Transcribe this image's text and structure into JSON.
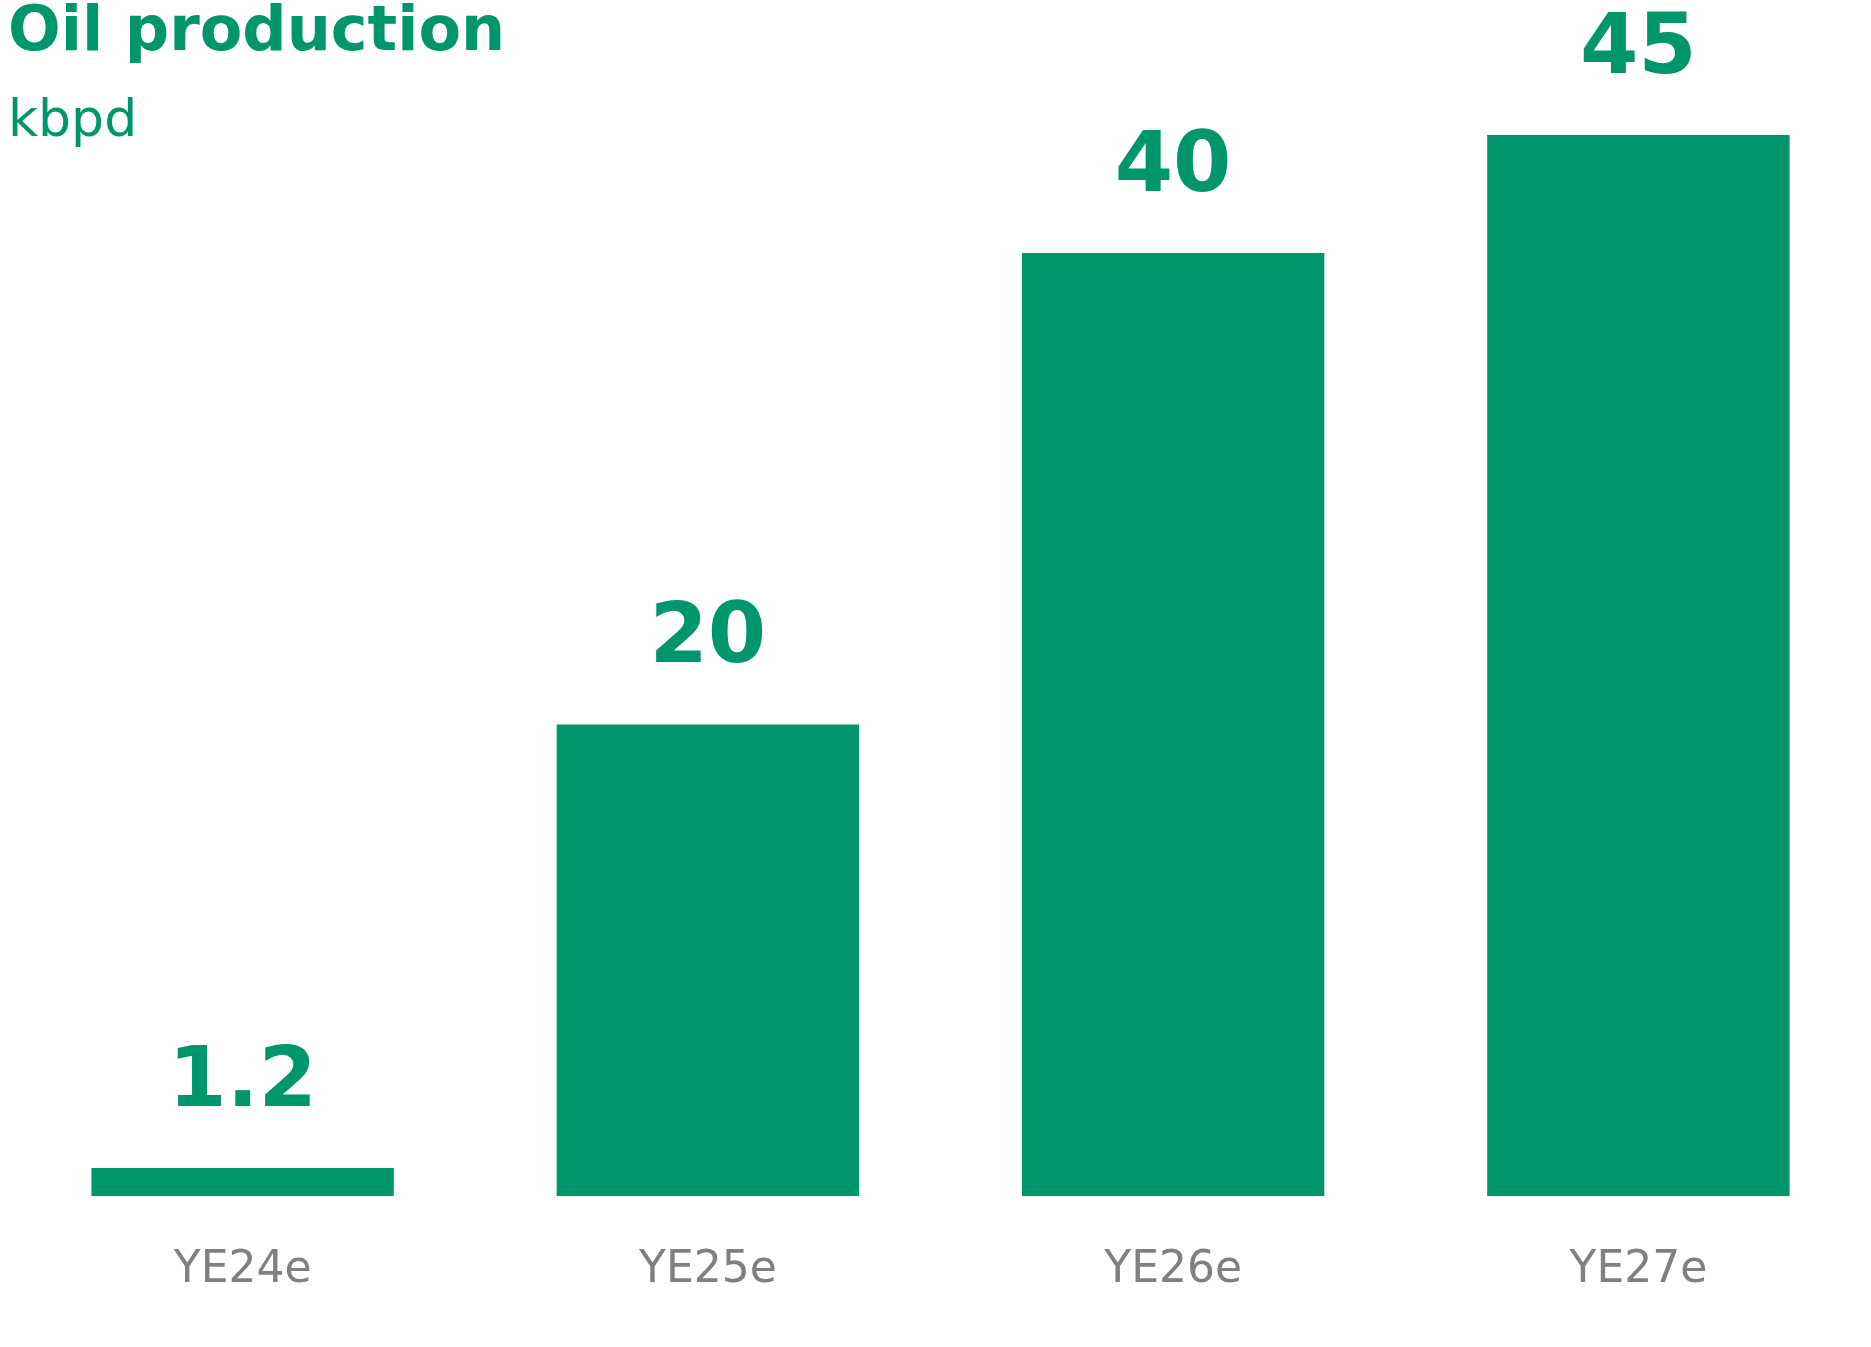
{
  "chart_data": {
    "type": "bar",
    "title": "Oil production",
    "subtitle": "kbpd",
    "categories": [
      "YE24e",
      "YE25e",
      "YE26e",
      "YE27e"
    ],
    "values": [
      1.2,
      20,
      40,
      45
    ],
    "color": "#00966c",
    "data_labels": true,
    "tick_labels": "x"
  }
}
